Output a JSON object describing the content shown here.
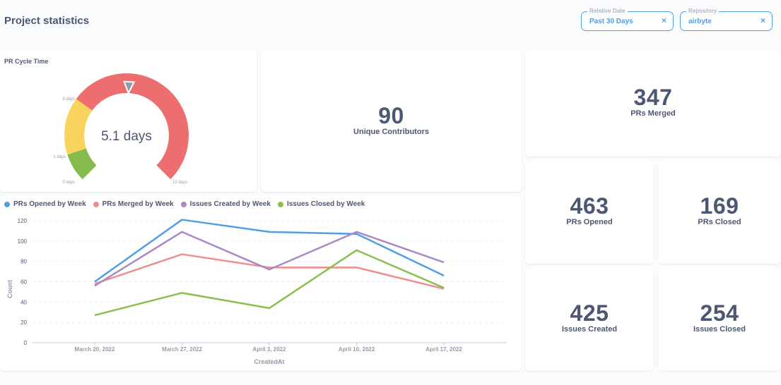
{
  "header": {
    "title": "Project statistics",
    "filters": [
      {
        "label": "Relative Date",
        "value": "Past 30 Days",
        "close": "×"
      },
      {
        "label": "Repository",
        "value": "airbyte",
        "close": "×"
      }
    ]
  },
  "gauge": {
    "title": "PR Cycle Time",
    "value_label": "5.1 days",
    "value": 5.1,
    "min": 0,
    "max": 10,
    "ticks": [
      "0 days",
      "1 days",
      "3 days",
      "10 days"
    ],
    "segments": [
      {
        "from": 0,
        "to": 1,
        "color": "#84bb4c"
      },
      {
        "from": 1,
        "to": 3,
        "color": "#f9d45c"
      },
      {
        "from": 3,
        "to": 10,
        "color": "#ed6e6e"
      }
    ]
  },
  "scalars": {
    "unique_contributors": {
      "value": "90",
      "label": "Unique Contributors"
    },
    "prs_merged": {
      "value": "347",
      "label": "PRs Merged"
    },
    "prs_opened": {
      "value": "463",
      "label": "PRs Opened"
    },
    "prs_closed": {
      "value": "169",
      "label": "PRs Closed"
    },
    "issues_created": {
      "value": "425",
      "label": "Issues Created"
    },
    "issues_closed": {
      "value": "254",
      "label": "Issues Closed"
    }
  },
  "chart_data": {
    "type": "line",
    "categories": [
      "March 20, 2022",
      "March 27, 2022",
      "April 3, 2022",
      "April 10, 2022",
      "April 17, 2022"
    ],
    "series": [
      {
        "name": "PRs Opened by Week",
        "color": "#509ee3",
        "values": [
          60,
          121,
          109,
          107,
          66
        ]
      },
      {
        "name": "PRs Merged by Week",
        "color": "#ef8c8c",
        "values": [
          58,
          87,
          74,
          74,
          53
        ]
      },
      {
        "name": "Issues Created by Week",
        "color": "#a989c5",
        "values": [
          56,
          109,
          72,
          109,
          79
        ]
      },
      {
        "name": "Issues Closed by Week",
        "color": "#88bf4d",
        "values": [
          27,
          49,
          34,
          91,
          54
        ]
      }
    ],
    "ylim": [
      0,
      120
    ],
    "yticks": [
      0,
      20,
      40,
      60,
      80,
      100,
      120
    ],
    "xlabel": "CreatedAt",
    "ylabel": "Count"
  }
}
